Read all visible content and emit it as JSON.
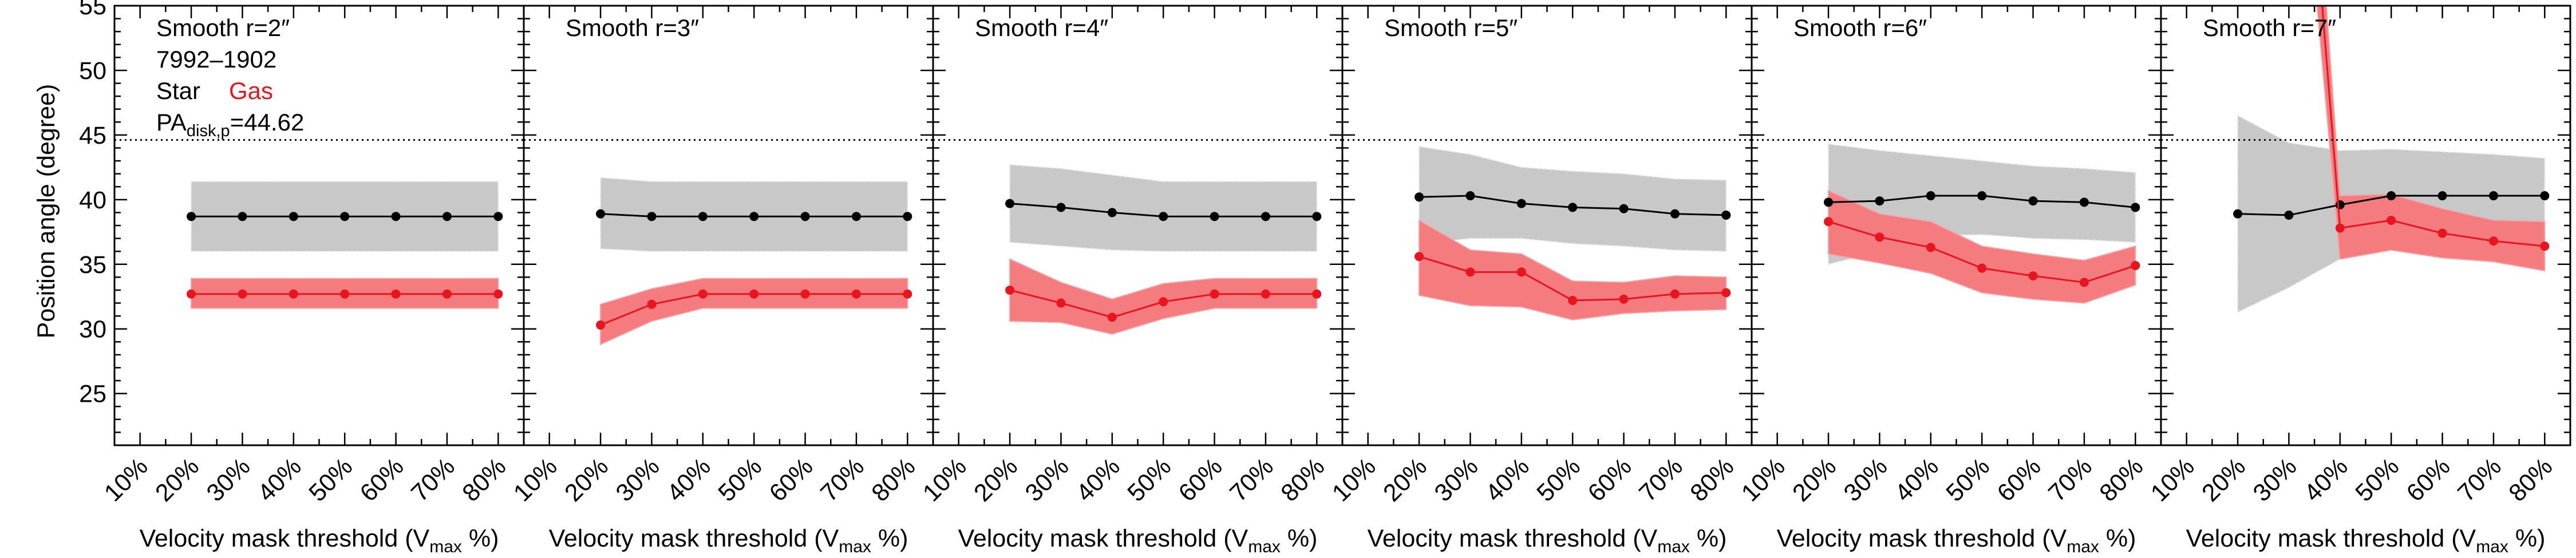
{
  "figure": {
    "ylabel": "Position angle (degree)",
    "xlabel_main": "Velocity mask threshold (V",
    "xlabel_sub": "max",
    "xlabel_tail": " %)",
    "legend": {
      "object_id": "7992–1902",
      "star_label": "Star",
      "gas_label": "Gas",
      "pa_label_main": "PA",
      "pa_label_sub": "disk,p",
      "pa_label_value": "=44.62"
    },
    "colors": {
      "star": "#000000",
      "gas": "#e8141e",
      "star_band": "#c8c8c8",
      "gas_band": "#f47b7e",
      "reference": "#000000"
    }
  },
  "chart_data": [
    {
      "type": "line",
      "title": "Smooth r=2″",
      "categories": [
        "10%",
        "20%",
        "30%",
        "40%",
        "50%",
        "60%",
        "70%",
        "80%"
      ],
      "x": [
        20,
        30,
        40,
        50,
        60,
        70,
        80
      ],
      "ylim": [
        21,
        55
      ],
      "xlim": [
        5,
        85
      ],
      "yticks": [
        25,
        30,
        35,
        40,
        45,
        50,
        55
      ],
      "reference_y": 44.62,
      "series": [
        {
          "name": "Star",
          "values": [
            38.7,
            38.7,
            38.7,
            38.7,
            38.7,
            38.7,
            38.7
          ],
          "lower": [
            36.0,
            36.0,
            36.0,
            36.0,
            36.0,
            36.0,
            36.0
          ],
          "upper": [
            41.4,
            41.4,
            41.4,
            41.4,
            41.4,
            41.4,
            41.4
          ]
        },
        {
          "name": "Gas",
          "values": [
            32.7,
            32.7,
            32.7,
            32.7,
            32.7,
            32.7,
            32.7
          ],
          "lower": [
            31.6,
            31.6,
            31.6,
            31.6,
            31.6,
            31.6,
            31.6
          ],
          "upper": [
            33.9,
            33.9,
            33.9,
            33.9,
            33.9,
            33.9,
            33.9
          ]
        }
      ]
    },
    {
      "type": "line",
      "title": "Smooth r=3″",
      "categories": [
        "10%",
        "20%",
        "30%",
        "40%",
        "50%",
        "60%",
        "70%",
        "80%"
      ],
      "x": [
        20,
        30,
        40,
        50,
        60,
        70,
        80
      ],
      "ylim": [
        21,
        55
      ],
      "xlim": [
        5,
        85
      ],
      "reference_y": 44.62,
      "series": [
        {
          "name": "Star",
          "values": [
            38.9,
            38.7,
            38.7,
            38.7,
            38.7,
            38.7,
            38.7
          ],
          "lower": [
            36.2,
            36.0,
            36.0,
            36.0,
            36.0,
            36.0,
            36.0
          ],
          "upper": [
            41.7,
            41.4,
            41.4,
            41.4,
            41.4,
            41.4,
            41.4
          ]
        },
        {
          "name": "Gas",
          "values": [
            30.3,
            31.9,
            32.7,
            32.7,
            32.7,
            32.7,
            32.7
          ],
          "lower": [
            28.8,
            30.6,
            31.6,
            31.6,
            31.6,
            31.6,
            31.6
          ],
          "upper": [
            31.9,
            33.1,
            33.9,
            33.9,
            33.9,
            33.9,
            33.9
          ]
        }
      ]
    },
    {
      "type": "line",
      "title": "Smooth r=4″",
      "categories": [
        "10%",
        "20%",
        "30%",
        "40%",
        "50%",
        "60%",
        "70%",
        "80%"
      ],
      "x": [
        20,
        30,
        40,
        50,
        60,
        70,
        80
      ],
      "ylim": [
        21,
        55
      ],
      "xlim": [
        5,
        85
      ],
      "reference_y": 44.62,
      "series": [
        {
          "name": "Star",
          "values": [
            39.7,
            39.4,
            39.0,
            38.7,
            38.7,
            38.7,
            38.7
          ],
          "lower": [
            36.7,
            36.4,
            36.1,
            36.0,
            36.0,
            36.0,
            36.0
          ],
          "upper": [
            42.7,
            42.4,
            41.9,
            41.4,
            41.4,
            41.4,
            41.4
          ]
        },
        {
          "name": "Gas",
          "values": [
            33.0,
            32.0,
            30.9,
            32.1,
            32.7,
            32.7,
            32.7
          ],
          "lower": [
            30.6,
            30.5,
            29.6,
            30.8,
            31.6,
            31.6,
            31.6
          ],
          "upper": [
            35.4,
            33.6,
            32.3,
            33.5,
            33.9,
            33.9,
            33.9
          ]
        }
      ]
    },
    {
      "type": "line",
      "title": "Smooth r=5″",
      "categories": [
        "10%",
        "20%",
        "30%",
        "40%",
        "50%",
        "60%",
        "70%",
        "80%"
      ],
      "x": [
        20,
        30,
        40,
        50,
        60,
        70,
        80
      ],
      "ylim": [
        21,
        55
      ],
      "xlim": [
        5,
        85
      ],
      "reference_y": 44.62,
      "series": [
        {
          "name": "Star",
          "values": [
            40.2,
            40.3,
            39.7,
            39.4,
            39.3,
            38.9,
            38.8
          ],
          "lower": [
            36.6,
            37.0,
            37.0,
            36.6,
            36.4,
            36.1,
            36.0
          ],
          "upper": [
            44.1,
            43.5,
            42.5,
            42.2,
            42.0,
            41.6,
            41.5
          ]
        },
        {
          "name": "Gas",
          "values": [
            35.6,
            34.4,
            34.4,
            32.2,
            32.3,
            32.7,
            32.8
          ],
          "lower": [
            32.6,
            31.8,
            31.7,
            30.7,
            31.2,
            31.4,
            31.5
          ],
          "upper": [
            38.4,
            36.1,
            35.8,
            33.7,
            33.6,
            34.1,
            34.0
          ]
        }
      ]
    },
    {
      "type": "line",
      "title": "Smooth r=6″",
      "categories": [
        "10%",
        "20%",
        "30%",
        "40%",
        "50%",
        "60%",
        "70%",
        "80%"
      ],
      "x": [
        20,
        30,
        40,
        50,
        60,
        70,
        80
      ],
      "ylim": [
        21,
        55
      ],
      "xlim": [
        5,
        85
      ],
      "reference_y": 44.62,
      "series": [
        {
          "name": "Star",
          "values": [
            39.8,
            39.9,
            40.3,
            40.3,
            39.9,
            39.8,
            39.4
          ],
          "lower": [
            35.0,
            36.0,
            37.2,
            37.3,
            37.0,
            36.9,
            36.7
          ],
          "upper": [
            44.3,
            43.8,
            43.4,
            43.0,
            42.6,
            42.4,
            42.1
          ]
        },
        {
          "name": "Gas",
          "values": [
            38.3,
            37.1,
            36.3,
            34.7,
            34.1,
            33.6,
            34.9
          ],
          "lower": [
            35.8,
            35.1,
            34.3,
            32.8,
            32.3,
            32.0,
            33.4
          ],
          "upper": [
            40.7,
            38.9,
            38.3,
            36.4,
            35.8,
            35.3,
            36.4
          ]
        }
      ]
    },
    {
      "type": "line",
      "title": "Smooth r=7″",
      "categories": [
        "10%",
        "20%",
        "30%",
        "40%",
        "50%",
        "60%",
        "70%",
        "80%"
      ],
      "x": [
        20,
        30,
        40,
        50,
        60,
        70,
        80
      ],
      "ylim": [
        21,
        55
      ],
      "xlim": [
        5,
        85
      ],
      "reference_y": 44.62,
      "series": [
        {
          "name": "Star",
          "values": [
            38.9,
            38.8,
            39.6,
            40.3,
            40.3,
            40.3,
            40.3
          ],
          "lower": [
            31.3,
            33.2,
            35.4,
            37.1,
            37.2,
            37.0,
            36.9
          ],
          "upper": [
            46.5,
            44.4,
            43.8,
            43.9,
            43.7,
            43.5,
            43.2
          ]
        },
        {
          "name": "Gas",
          "x": [
            35.5,
            40,
            50,
            60,
            70,
            80
          ],
          "values": [
            60.0,
            37.8,
            38.4,
            37.4,
            36.8,
            36.4
          ],
          "lower": [
            55.0,
            35.4,
            36.1,
            35.5,
            35.2,
            34.5
          ],
          "upper": [
            65.0,
            40.3,
            40.4,
            39.3,
            38.4,
            38.3
          ]
        }
      ]
    }
  ]
}
